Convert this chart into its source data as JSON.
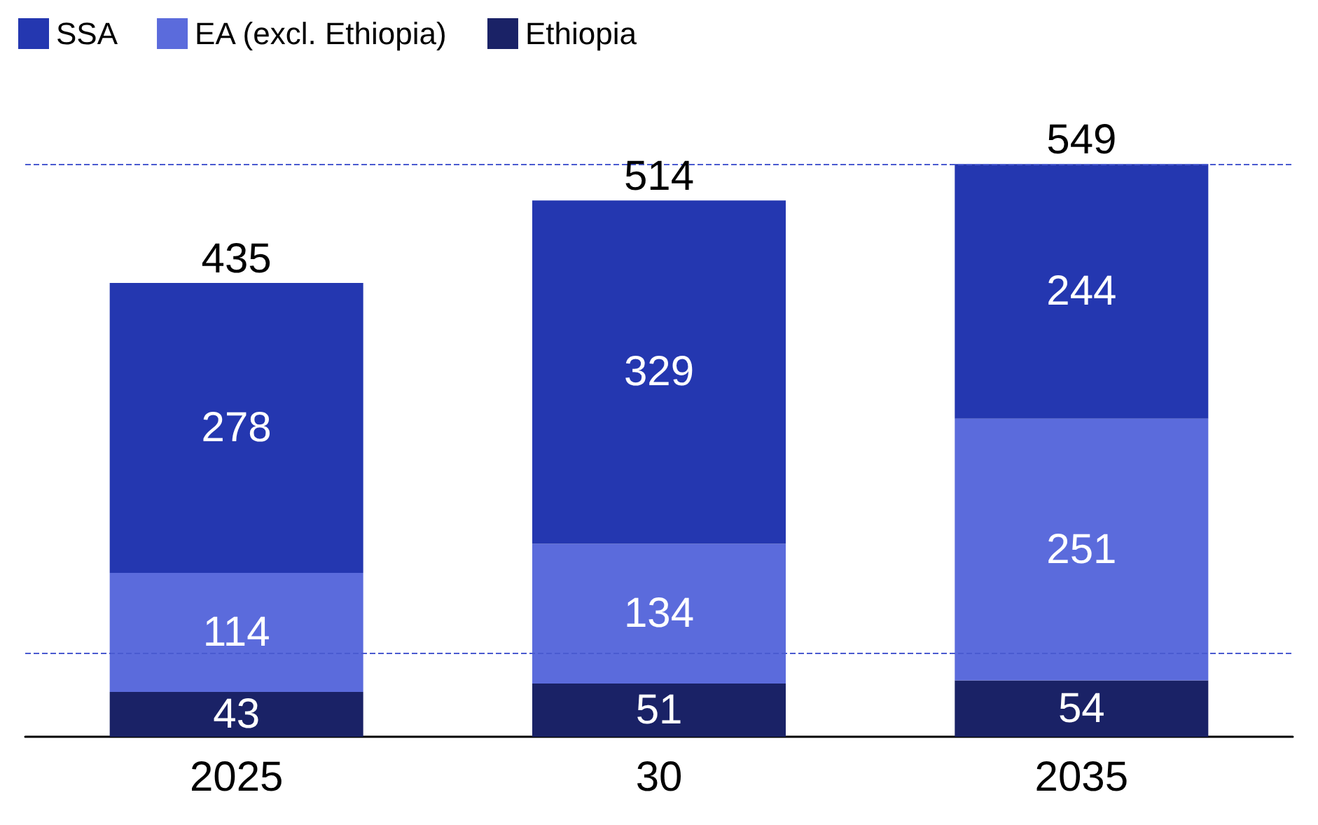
{
  "chart_data": {
    "type": "bar",
    "stacked": true,
    "categories": [
      "2025",
      "30",
      "2035"
    ],
    "series": [
      {
        "name": "Ethiopia",
        "color": "#1a2266",
        "values": [
          43,
          51,
          54
        ]
      },
      {
        "name": "EA (excl. Ethiopia)",
        "color": "#5b6bdc",
        "values": [
          114,
          134,
          251
        ]
      },
      {
        "name": "SSA",
        "color": "#2437b0",
        "values": [
          278,
          329,
          244
        ]
      }
    ],
    "totals": [
      "435",
      "514",
      "549"
    ],
    "data_labels": true,
    "legend": "top left",
    "grid": false,
    "ref_lines": [
      {
        "axis": "y",
        "value": 549,
        "color": "#4a5bd0",
        "line_style": "dashed"
      },
      {
        "axis": "y",
        "value": 80,
        "color": "#4a5bd0",
        "line_style": "dashed"
      }
    ]
  }
}
